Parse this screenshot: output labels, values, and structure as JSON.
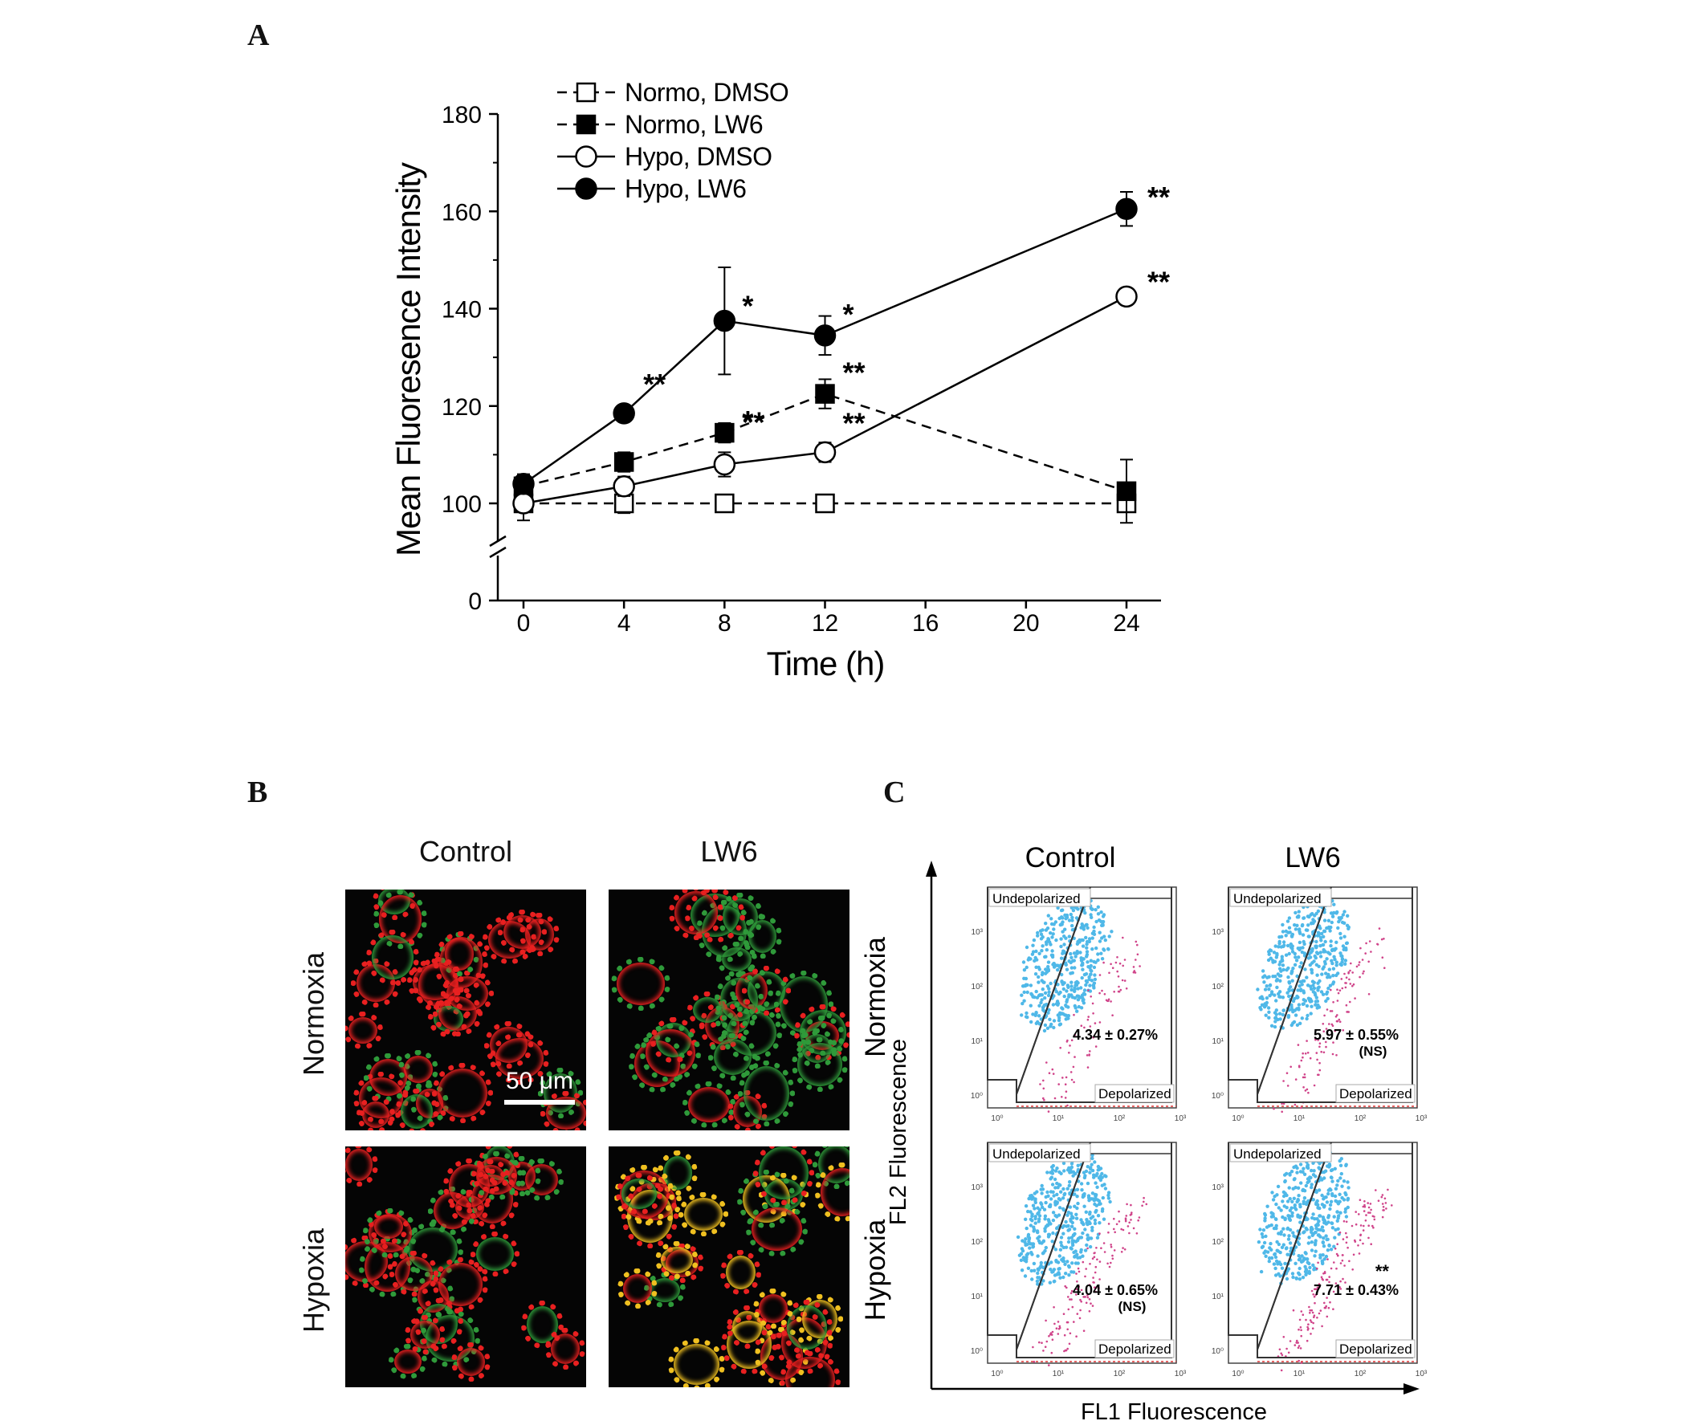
{
  "panels": {
    "a": "A",
    "b": "B",
    "c": "C"
  },
  "chart_data": [
    {
      "type": "line",
      "xlabel": "Time (h)",
      "ylabel": "Mean Fluoresence Intensity",
      "x": [
        0,
        4,
        8,
        12,
        24
      ],
      "xticks": [
        0,
        4,
        8,
        12,
        16,
        20,
        24
      ],
      "yticks": [
        0,
        100,
        120,
        140,
        160,
        180
      ],
      "ylim": [
        0,
        180
      ],
      "axis_break": "between 0 and 100",
      "series": [
        {
          "name": "Normo, DMSO",
          "marker": "open-square",
          "line": "dashed",
          "values": [
            100,
            100,
            100,
            100,
            100
          ],
          "err": [
            0,
            2,
            1,
            1,
            0
          ],
          "annotations": [
            "",
            "",
            "",
            "",
            ""
          ]
        },
        {
          "name": "Normo, LW6",
          "marker": "filled-square",
          "line": "dashed",
          "values": [
            103.5,
            108.5,
            114.5,
            122.5,
            102.5
          ],
          "err": [
            2,
            2,
            2,
            3,
            6.5
          ],
          "annotations": [
            "",
            "",
            "*",
            "**",
            ""
          ]
        },
        {
          "name": "Hypo, DMSO",
          "marker": "open-circle",
          "line": "solid",
          "values": [
            100,
            103.5,
            108,
            110.5,
            142.5
          ],
          "err": [
            3.5,
            2,
            2.5,
            2,
            1.5
          ],
          "annotations": [
            "",
            "",
            "**",
            "**",
            "**"
          ]
        },
        {
          "name": "Hypo, LW6",
          "marker": "filled-circle",
          "line": "solid",
          "values": [
            104,
            118.5,
            137.5,
            134.5,
            160.5
          ],
          "err": [
            2,
            1,
            11,
            4,
            3.5
          ],
          "annotations": [
            "",
            "**",
            "*",
            "*",
            "**"
          ]
        }
      ]
    },
    {
      "type": "scatter",
      "xlabel": "FL1 Fluorescence",
      "ylabel": "FL2 Fluorescence",
      "columns": [
        "Control",
        "LW6"
      ],
      "rows": [
        "Normoxia",
        "Hypoxia"
      ],
      "gate_labels": {
        "upper": "Undepolarized",
        "lower": "Depolarized"
      },
      "ticks": [
        "10⁰",
        "10¹",
        "10²",
        "10³"
      ],
      "plots": [
        {
          "row": "Normoxia",
          "col": "Control",
          "depolarized": "4.34 ± 0.27%",
          "note": "",
          "sig": ""
        },
        {
          "row": "Normoxia",
          "col": "LW6",
          "depolarized": "5.97 ± 0.55%",
          "note": "(NS)",
          "sig": ""
        },
        {
          "row": "Hypoxia",
          "col": "Control",
          "depolarized": "4.04 ± 0.65%",
          "note": "(NS)",
          "sig": ""
        },
        {
          "row": "Hypoxia",
          "col": "LW6",
          "depolarized": "7.71 ± 0.43%",
          "note": "",
          "sig": "**"
        }
      ]
    }
  ],
  "microscopy": {
    "columns": [
      "Control",
      "LW6"
    ],
    "rows": [
      "Normoxia",
      "Hypoxia"
    ],
    "scale_bar": "50 μm"
  },
  "colors": {
    "undepolarized": "#4fb8e8",
    "depolarized": "#d0448a",
    "red_stain": "#e82020",
    "green_stain": "#2f9a3a",
    "yellow_stain": "#f0c020"
  }
}
